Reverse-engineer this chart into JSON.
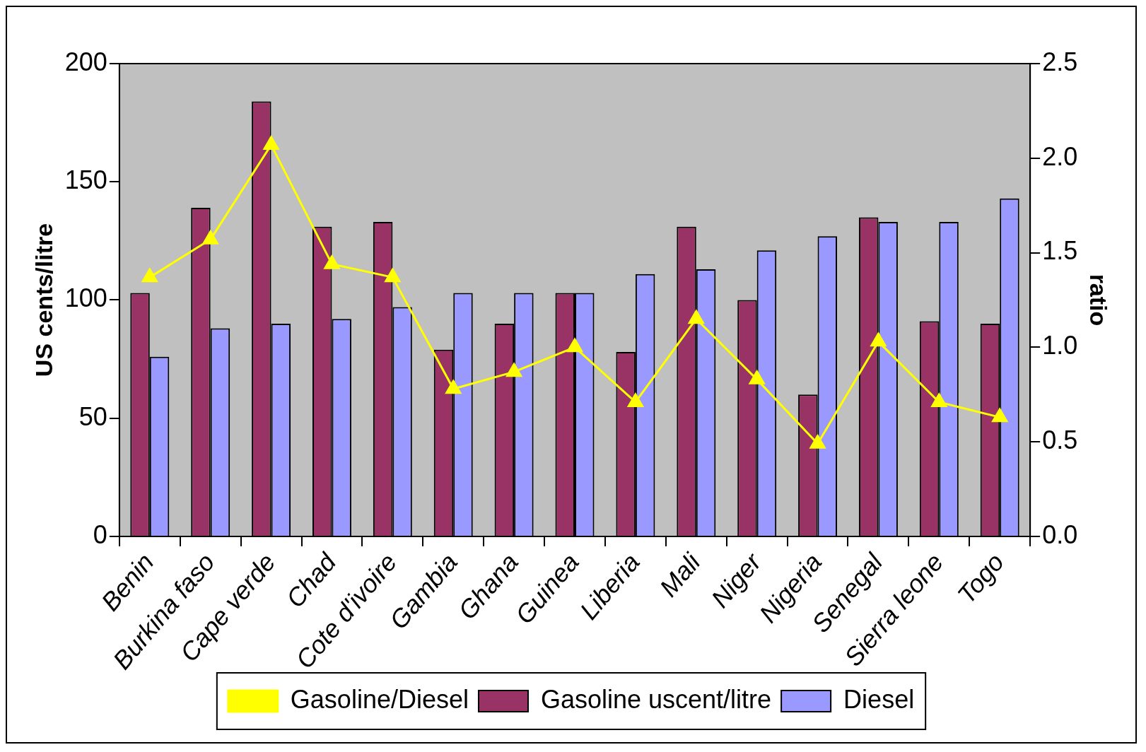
{
  "chart_data": {
    "type": "bar",
    "categories": [
      "Benin",
      "Burkina faso",
      "Cape verde",
      "Chad",
      "Cote d'ivoire",
      "Gambia",
      "Ghana",
      "Guinea",
      "Liberia",
      "Mali",
      "Niger",
      "Nigeria",
      "Senegal",
      "Sierra leone",
      "Togo"
    ],
    "series": [
      {
        "name": "Gasoline uscent/litre",
        "color": "#993366",
        "values": [
          103,
          139,
          184,
          131,
          133,
          79,
          90,
          103,
          78,
          131,
          100,
          60,
          135,
          91,
          90
        ]
      },
      {
        "name": "Diesel",
        "color": "#9999ff",
        "values": [
          76,
          88,
          90,
          92,
          97,
          103,
          103,
          103,
          111,
          113,
          121,
          127,
          133,
          133,
          143
        ]
      },
      {
        "name": "Gasoline/Diesel",
        "type": "line",
        "axis": "y2",
        "marker": "triangle",
        "color": "#ffff00",
        "values": [
          1.37,
          1.57,
          2.07,
          1.44,
          1.37,
          0.78,
          0.87,
          1.0,
          0.71,
          1.15,
          0.83,
          0.49,
          1.03,
          0.71,
          0.63
        ]
      }
    ],
    "ylabel": "US cents/litre",
    "y2label": "ratio",
    "ylim": [
      0,
      200
    ],
    "yticks": [
      0,
      50,
      100,
      150,
      200
    ],
    "y2lim": [
      0,
      2.5
    ],
    "y2ticks": [
      {
        "value": 0,
        "label": "0.0"
      },
      {
        "value": 0.5,
        "label": "0.5"
      },
      {
        "value": 1,
        "label": "1.0"
      },
      {
        "value": 1.5,
        "label": "1.5"
      },
      {
        "value": 2,
        "label": "2.0"
      },
      {
        "value": 2.5,
        "label": "2.5"
      }
    ],
    "legend": "bottom"
  }
}
